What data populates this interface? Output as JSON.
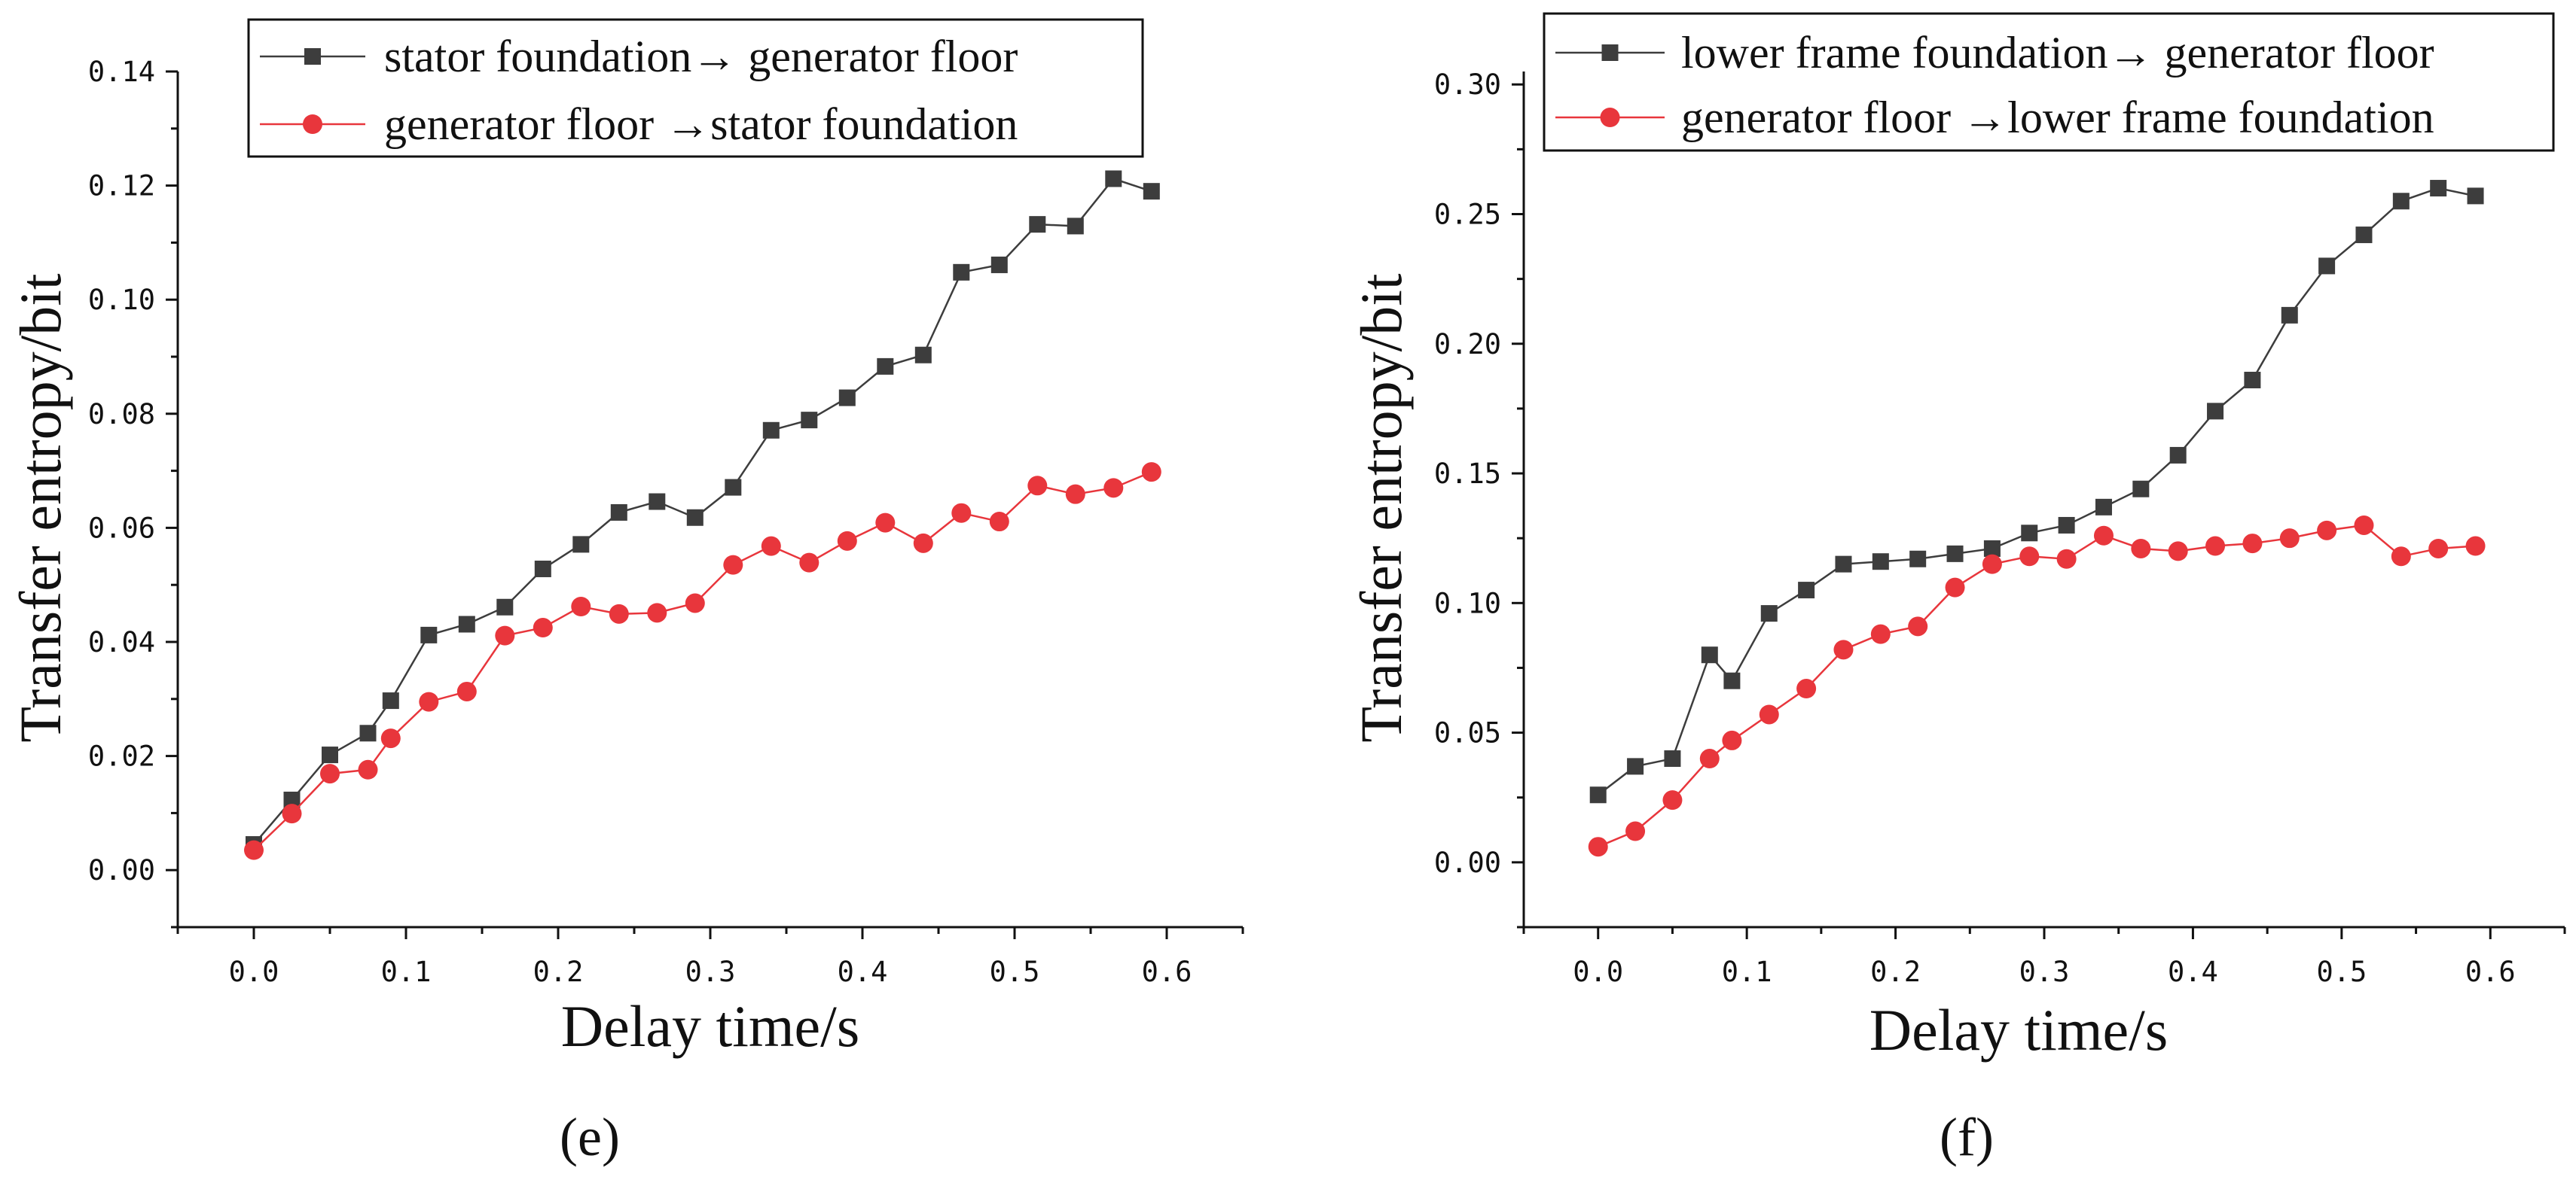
{
  "chart_data": [
    {
      "type": "line",
      "panel_label": "(e)",
      "xlabel": "Delay time/s",
      "ylabel": "Transfer entropy/bit",
      "xlim": [
        -0.05,
        0.65
      ],
      "ylim": [
        -0.01,
        0.14
      ],
      "xticks": [
        0.0,
        0.1,
        0.2,
        0.3,
        0.4,
        0.5,
        0.6
      ],
      "xtick_labels": [
        "0.0",
        "0.1",
        "0.2",
        "0.3",
        "0.4",
        "0.5",
        "0.6"
      ],
      "yticks": [
        0.0,
        0.02,
        0.04,
        0.06,
        0.08,
        0.1,
        0.12,
        0.14
      ],
      "ytick_labels": [
        "0.00",
        "0.02",
        "0.04",
        "0.06",
        "0.08",
        "0.10",
        "0.12",
        "0.14"
      ],
      "legend_position": "top",
      "x": [
        0.0,
        0.025,
        0.05,
        0.075,
        0.09,
        0.115,
        0.14,
        0.165,
        0.19,
        0.215,
        0.24,
        0.265,
        0.29,
        0.315,
        0.34,
        0.365,
        0.39,
        0.415,
        0.44,
        0.465,
        0.49,
        0.515,
        0.54,
        0.565,
        0.59
      ],
      "series": [
        {
          "name": "stator foundation→ generator floor",
          "color": "#3d3d3d",
          "marker": "square",
          "values": [
            0.0045,
            0.0123,
            0.0202,
            0.024,
            0.0297,
            0.0412,
            0.0431,
            0.0461,
            0.0528,
            0.0571,
            0.0627,
            0.0646,
            0.0618,
            0.0671,
            0.0771,
            0.0789,
            0.0828,
            0.0883,
            0.0903,
            0.1048,
            0.1061,
            0.1132,
            0.1129,
            0.1212,
            0.119
          ]
        },
        {
          "name": "generator floor →stator foundation",
          "color": "#e8363c",
          "marker": "circle",
          "values": [
            0.0035,
            0.0099,
            0.0169,
            0.0176,
            0.0231,
            0.0295,
            0.0313,
            0.0411,
            0.0425,
            0.0462,
            0.0449,
            0.0451,
            0.0468,
            0.0535,
            0.0568,
            0.0539,
            0.0577,
            0.0609,
            0.0573,
            0.0626,
            0.0611,
            0.0674,
            0.0659,
            0.067,
            0.0698
          ]
        }
      ]
    },
    {
      "type": "line",
      "panel_label": "(f)",
      "xlabel": "Delay time/s",
      "ylabel": "Transfer entropy/bit",
      "xlim": [
        -0.05,
        0.65
      ],
      "ylim": [
        -0.025,
        0.305
      ],
      "xticks": [
        0.0,
        0.1,
        0.2,
        0.3,
        0.4,
        0.5,
        0.6
      ],
      "xtick_labels": [
        "0.0",
        "0.1",
        "0.2",
        "0.3",
        "0.4",
        "0.5",
        "0.6"
      ],
      "yticks": [
        0.0,
        0.05,
        0.1,
        0.15,
        0.2,
        0.25,
        0.3
      ],
      "ytick_labels": [
        "0.00",
        "0.05",
        "0.10",
        "0.15",
        "0.20",
        "0.25",
        "0.30"
      ],
      "legend_position": "top",
      "x": [
        0.0,
        0.025,
        0.05,
        0.075,
        0.09,
        0.115,
        0.14,
        0.165,
        0.19,
        0.215,
        0.24,
        0.265,
        0.29,
        0.315,
        0.34,
        0.365,
        0.39,
        0.415,
        0.44,
        0.465,
        0.49,
        0.515,
        0.54,
        0.565,
        0.59
      ],
      "series": [
        {
          "name": "lower frame foundation→ generator floor",
          "color": "#3d3d3d",
          "marker": "square",
          "values": [
            0.026,
            0.037,
            0.04,
            0.08,
            0.07,
            0.096,
            0.105,
            0.115,
            0.116,
            0.117,
            0.119,
            0.121,
            0.127,
            0.13,
            0.137,
            0.144,
            0.157,
            0.174,
            0.186,
            0.211,
            0.23,
            0.242,
            0.255,
            0.26,
            0.257
          ]
        },
        {
          "name": "generator floor →lower frame foundation",
          "color": "#e8363c",
          "marker": "circle",
          "values": [
            0.006,
            0.012,
            0.024,
            0.04,
            0.047,
            0.057,
            0.067,
            0.082,
            0.088,
            0.091,
            0.106,
            0.115,
            0.118,
            0.117,
            0.126,
            0.121,
            0.12,
            0.122,
            0.123,
            0.125,
            0.128,
            0.13,
            0.118,
            0.121,
            0.122
          ]
        }
      ]
    }
  ]
}
